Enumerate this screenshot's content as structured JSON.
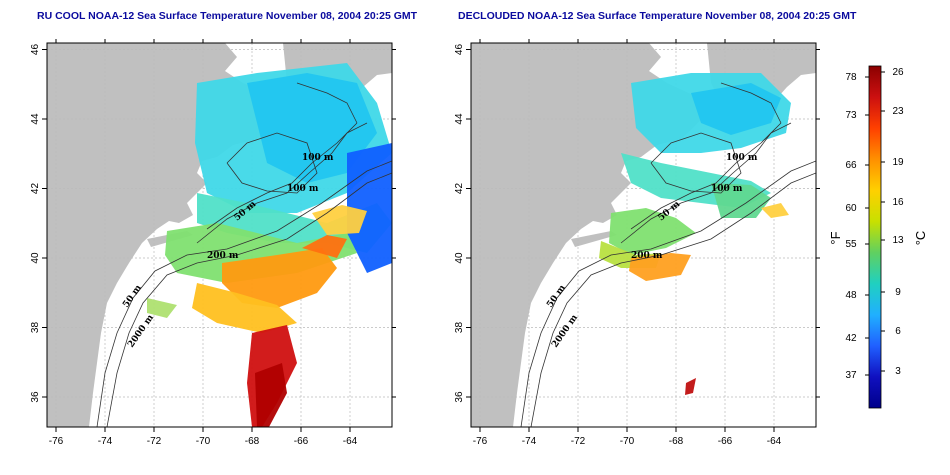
{
  "panels": [
    {
      "id": "left",
      "title": "RU COOL NOAA-12 Sea Surface Temperature November 08, 2004 20:25 GMT",
      "x_ticks": [
        "-76",
        "-74",
        "-72",
        "-70",
        "-68",
        "-66",
        "-64"
      ],
      "y_ticks": [
        "36",
        "38",
        "40",
        "42",
        "44",
        "46"
      ],
      "contour_labels": [
        "100 m",
        "100 m",
        "50 m",
        "200 m",
        "50 m",
        "2000 m"
      ]
    },
    {
      "id": "right",
      "title": "DECLOUDED NOAA-12 Sea Surface Temperature November 08, 2004 20:25 GMT",
      "x_ticks": [
        "-76",
        "-74",
        "-72",
        "-70",
        "-68",
        "-66",
        "-64"
      ],
      "y_ticks": [
        "36",
        "38",
        "40",
        "42",
        "44",
        "46"
      ],
      "contour_labels": [
        "100 m",
        "100 m",
        "50 m",
        "200 m",
        "50 m",
        "2000 m"
      ]
    }
  ],
  "colorbar": {
    "f_unit": "°F",
    "c_unit": "°C",
    "f_ticks": [
      "78",
      "73",
      "66",
      "60",
      "55",
      "48",
      "42",
      "37"
    ],
    "c_ticks": [
      "26",
      "23",
      "19",
      "16",
      "13",
      "9",
      "6",
      "3"
    ],
    "colors": [
      "#8b0000",
      "#cc1010",
      "#ff4000",
      "#ff9000",
      "#ffd000",
      "#c8e000",
      "#60d060",
      "#20d0c0",
      "#20b0ff",
      "#2060ff",
      "#1010c0",
      "#00008b"
    ]
  },
  "colors": {
    "land": "#c0c0c0",
    "title": "#0a0a9e",
    "grid": "#bbbbbb"
  }
}
